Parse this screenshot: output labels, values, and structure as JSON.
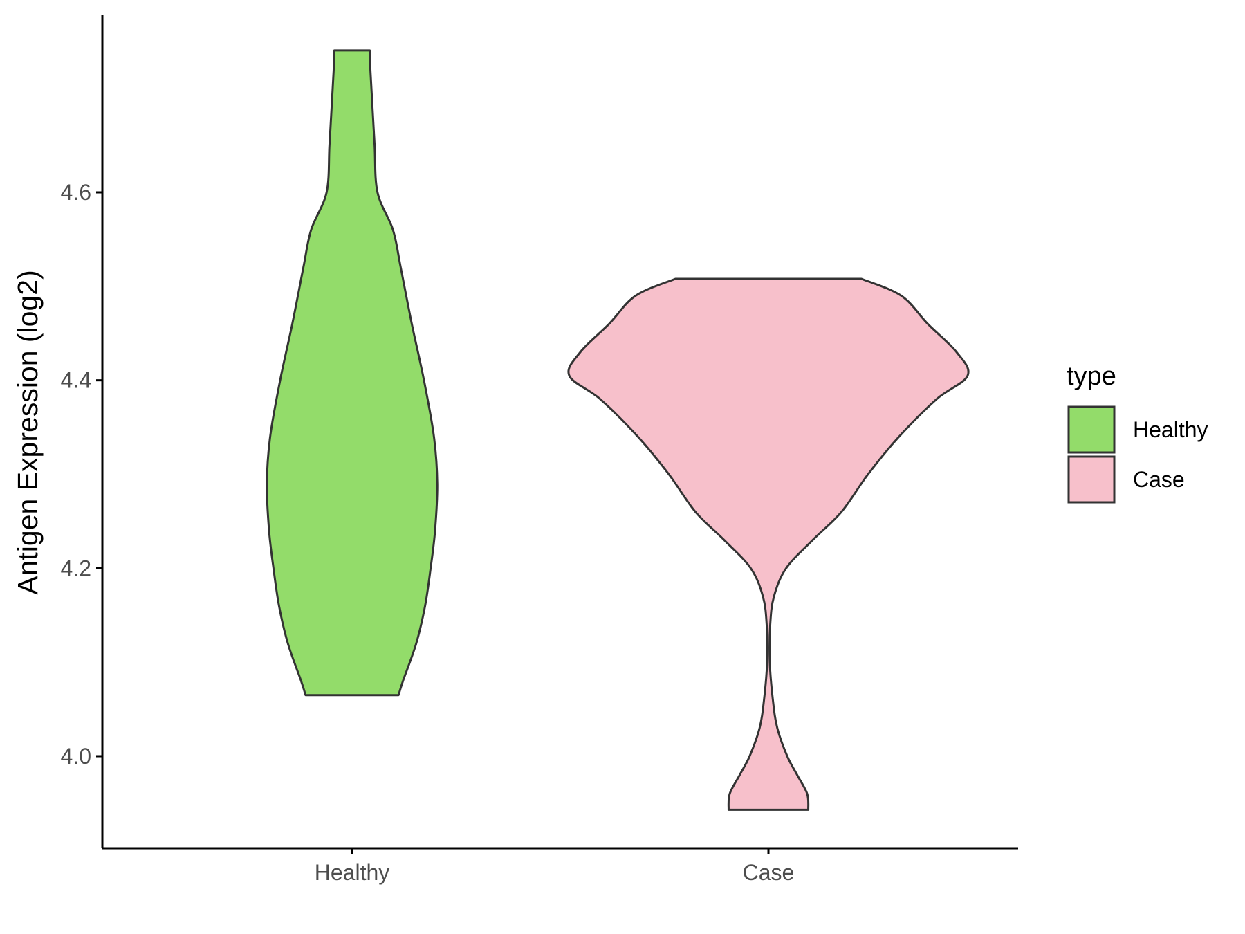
{
  "chart_data": {
    "type": "violin",
    "title": "",
    "xlabel": "",
    "ylabel": "Antigen Expression (log2)",
    "ylim": [
      3.9,
      4.79
    ],
    "yticks": [
      "4.0",
      "4.2",
      "4.4",
      "4.6"
    ],
    "ytick_values": [
      4.0,
      4.2,
      4.4,
      4.6
    ],
    "categories": [
      "Healthy",
      "Case"
    ],
    "legend": {
      "title": "type",
      "position": "right",
      "entries": [
        "Healthy",
        "Case"
      ]
    },
    "grid": false,
    "series": [
      {
        "name": "Healthy",
        "color": "#93DC6A",
        "min": 4.065,
        "max": 4.751,
        "density_profile": [
          [
            4.065,
            0.21
          ],
          [
            4.08,
            0.23
          ],
          [
            4.12,
            0.29
          ],
          [
            4.16,
            0.33
          ],
          [
            4.2,
            0.355
          ],
          [
            4.24,
            0.375
          ],
          [
            4.29,
            0.385
          ],
          [
            4.34,
            0.37
          ],
          [
            4.4,
            0.325
          ],
          [
            4.46,
            0.27
          ],
          [
            4.52,
            0.22
          ],
          [
            4.56,
            0.185
          ],
          [
            4.6,
            0.115
          ],
          [
            4.65,
            0.102
          ],
          [
            4.7,
            0.09
          ],
          [
            4.73,
            0.083
          ],
          [
            4.751,
            0.08
          ]
        ]
      },
      {
        "name": "Case",
        "color": "#F7C0CB",
        "min": 3.943,
        "max": 4.508,
        "density_profile": [
          [
            3.943,
            0.18
          ],
          [
            3.96,
            0.175
          ],
          [
            3.98,
            0.13
          ],
          [
            4.0,
            0.085
          ],
          [
            4.03,
            0.04
          ],
          [
            4.06,
            0.02
          ],
          [
            4.1,
            0.006
          ],
          [
            4.14,
            0.008
          ],
          [
            4.17,
            0.025
          ],
          [
            4.2,
            0.08
          ],
          [
            4.23,
            0.2
          ],
          [
            4.26,
            0.33
          ],
          [
            4.3,
            0.45
          ],
          [
            4.34,
            0.59
          ],
          [
            4.38,
            0.76
          ],
          [
            4.405,
            0.9
          ],
          [
            4.43,
            0.85
          ],
          [
            4.46,
            0.72
          ],
          [
            4.49,
            0.6
          ],
          [
            4.508,
            0.42
          ]
        ]
      }
    ]
  }
}
